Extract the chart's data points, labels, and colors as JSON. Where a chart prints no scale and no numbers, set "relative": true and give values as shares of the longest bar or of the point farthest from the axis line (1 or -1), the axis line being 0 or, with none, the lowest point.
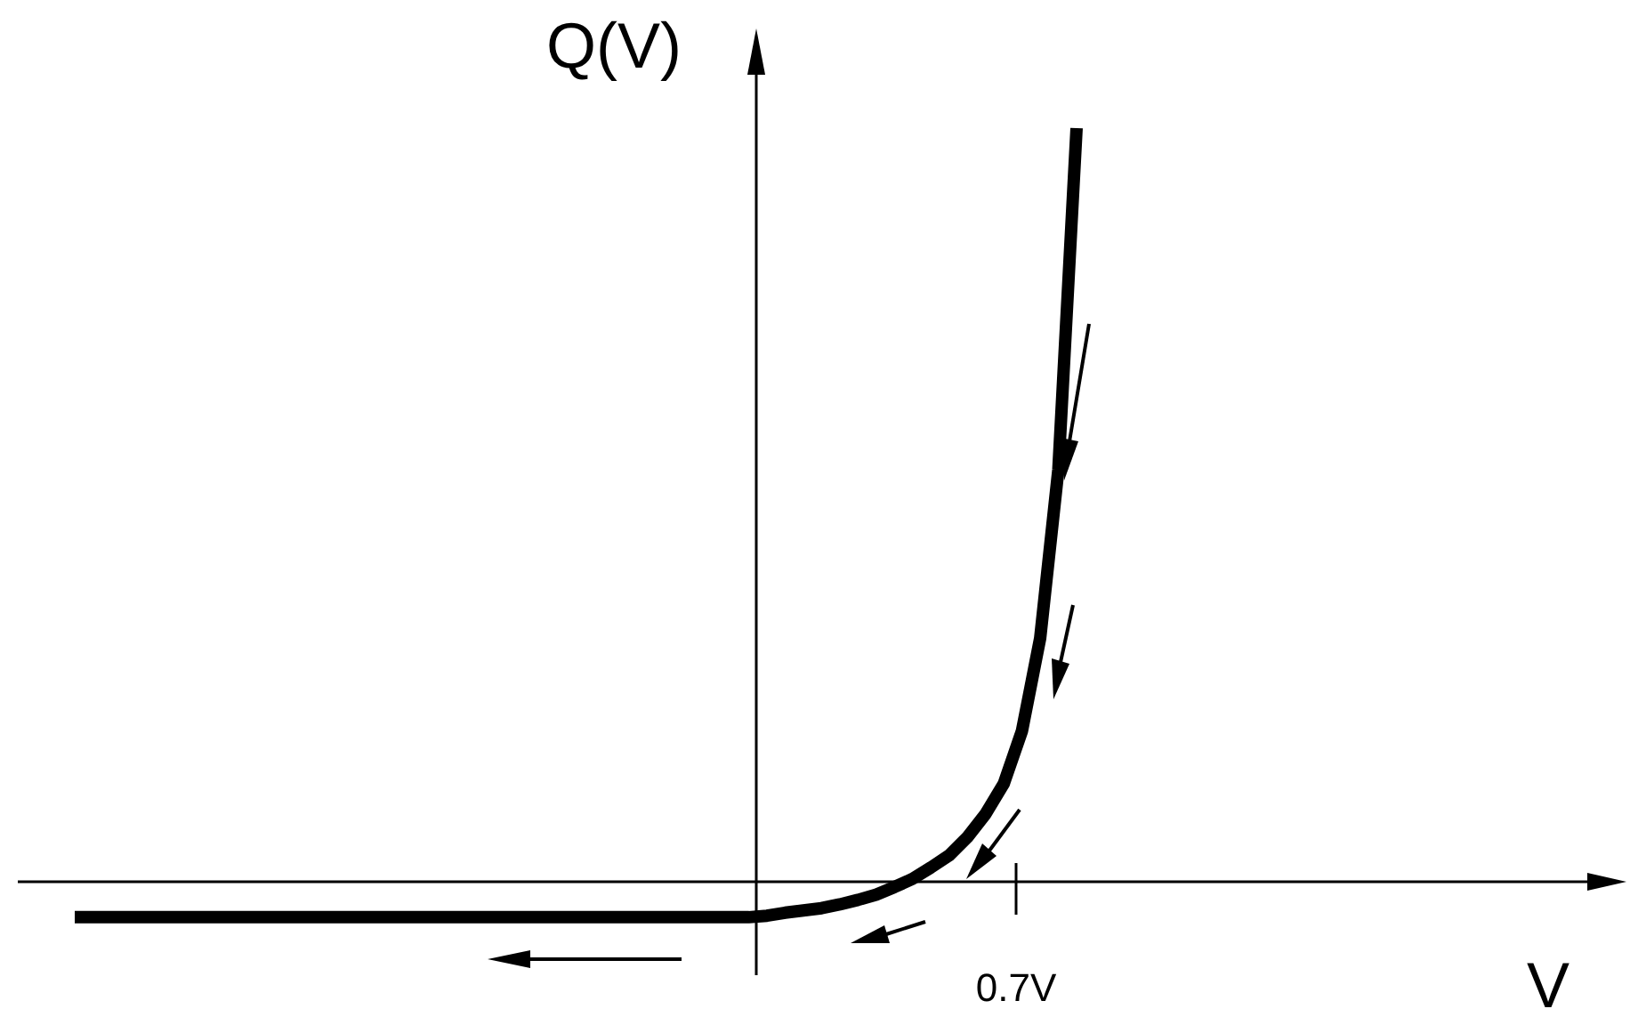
{
  "chart_data": {
    "type": "line",
    "relative": true,
    "ylabel": "Q(V)",
    "categories": [
      null,
      null,
      null,
      null,
      null,
      null,
      null,
      null,
      null,
      null,
      null,
      null,
      null,
      null,
      null,
      null,
      null,
      null,
      null,
      null,
      null,
      null,
      null,
      null,
      null,
      null,
      null,
      null,
      null,
      null,
      null,
      null,
      null,
      null,
      null,
      null,
      null,
      null,
      null,
      null,
      null,
      null,
      null,
      null,
      null,
      null,
      null,
      null,
      null,
      null,
      null,
      null,
      null,
      null,
      null,
      null
    ],
    "series": [
      {
        "color": "#000000",
        "values": [
          -0.047,
          -0.047,
          -0.047,
          -0.047,
          -0.047,
          -0.047,
          -0.047,
          -0.047,
          -0.047,
          -0.047,
          -0.047,
          -0.047,
          -0.047,
          -0.047,
          -0.047,
          -0.047,
          -0.047,
          -0.047,
          -0.047,
          -0.047,
          -0.047,
          -0.047,
          -0.047,
          -0.047,
          -0.047,
          -0.047,
          -0.047,
          -0.047,
          -0.047,
          -0.047,
          -0.047,
          -0.047,
          -0.047,
          -0.047,
          -0.047,
          -0.047,
          -0.047,
          -0.047,
          -0.045,
          -0.041,
          -0.038,
          -0.035,
          -0.03,
          -0.024,
          -0.017,
          -0.007,
          0.004,
          0.019,
          0.035,
          0.059,
          0.09,
          0.13,
          0.2,
          0.323,
          0.547,
          1
        ]
      }
    ],
    "annotations": [
      "0.7V",
      "V"
    ],
    "legend": false,
    "marker": "none",
    "line_style": "solid"
  }
}
